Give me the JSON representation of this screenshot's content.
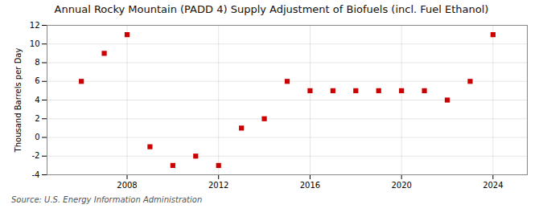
{
  "chart_data": {
    "type": "scatter",
    "title": "Annual Rocky Mountain (PADD 4) Supply Adjustment of Biofuels (incl. Fuel Ethanol)",
    "ylabel": "Thousand Barrels per Day",
    "annotations": [
      "Source: U.S. Energy Information Administration"
    ],
    "x": [
      2006,
      2007,
      2008,
      2009,
      2010,
      2011,
      2012,
      2013,
      2014,
      2015,
      2016,
      2017,
      2018,
      2019,
      2020,
      2021,
      2022,
      2023,
      2024
    ],
    "values": [
      6,
      9,
      11,
      -1,
      -3,
      -2,
      -3,
      1,
      2,
      6,
      5,
      5,
      5,
      5,
      5,
      5,
      4,
      6,
      11
    ],
    "color": "#cc0000",
    "marker": "square",
    "xlim": [
      2004.5,
      2025.5
    ],
    "xticks": [
      2008,
      2012,
      2016,
      2020,
      2024
    ],
    "ylim": [
      -4,
      12
    ],
    "yticks": [
      -4,
      -2,
      0,
      2,
      4,
      6,
      8,
      10,
      12
    ],
    "grid": true
  }
}
